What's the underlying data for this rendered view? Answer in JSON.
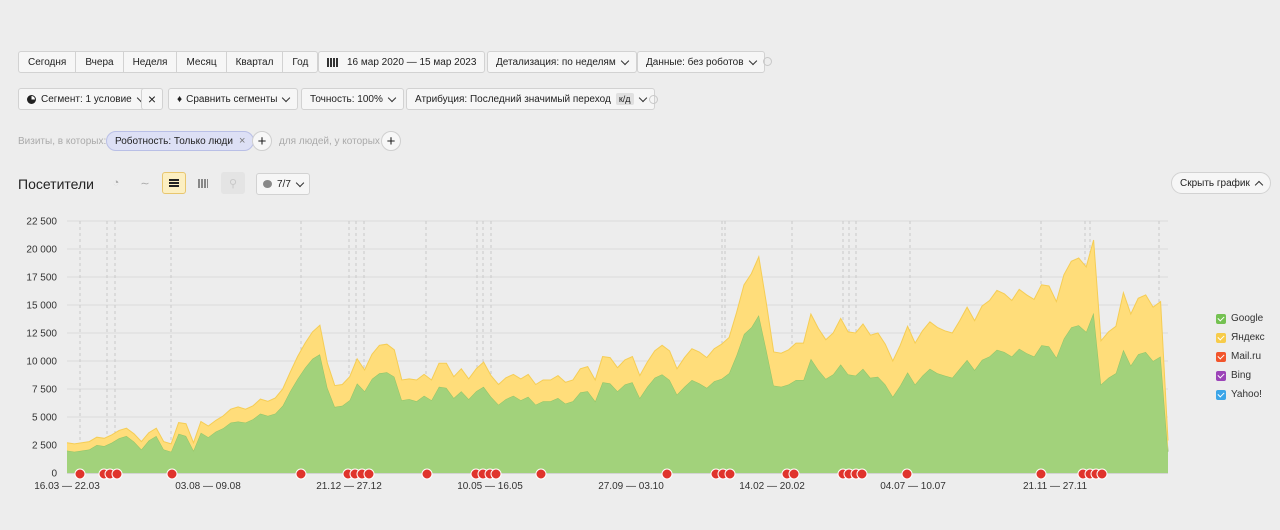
{
  "toolbar": {
    "periods": [
      "Сегодня",
      "Вчера",
      "Неделя",
      "Месяц",
      "Квартал",
      "Год"
    ],
    "date_range": "16 мар 2020 — 15 мар 2023",
    "detail": "Детализация: по неделям",
    "data_filter": "Данные: без роботов"
  },
  "toolbar2": {
    "segment": "Сегмент: 1 условие",
    "compare": "Сравнить сегменты",
    "accuracy": "Точность: 100%",
    "attribution": "Атрибуция: Последний значимый переход",
    "attribution_badge": "к/д"
  },
  "filter_row": {
    "visits_label": "Визиты, в которых:",
    "chip": "Роботность: Только люди",
    "people_label": "для людей, у которых"
  },
  "chart_header": {
    "title": "Посетители",
    "annotations_count": "7/7",
    "hide_button": "Скрыть график"
  },
  "colors": {
    "google": "#a2d27b",
    "yandex": "#ffdd7a",
    "mailru": "#f2552c",
    "bing": "#9c44b8",
    "yahoo": "#3ba5e8"
  },
  "chart_data": {
    "type": "area",
    "y_ticks": [
      "0",
      "2 500",
      "5 000",
      "7 500",
      "10 000",
      "12 500",
      "15 000",
      "17 500",
      "20 000",
      "22 500"
    ],
    "ylim": [
      0,
      22500
    ],
    "x_tick_labels": [
      "16.03 — 22.03",
      "03.08 — 09.08",
      "21.12 — 27.12",
      "10.05 — 16.05",
      "27.09 — 03.10",
      "14.02 — 20.02",
      "04.07 — 10.07",
      "21.11 — 27.11"
    ],
    "legend": [
      "Google",
      "Яндекс",
      "Mail.ru",
      "Bing",
      "Yahoo!"
    ],
    "series": [
      {
        "name": "Google",
        "values": [
          2000,
          1900,
          2000,
          2100,
          2500,
          2400,
          2700,
          3100,
          3300,
          2800,
          2100,
          2900,
          3300,
          2100,
          1900,
          3500,
          3300,
          2000,
          3600,
          3200,
          3700,
          4000,
          4500,
          4600,
          4500,
          4800,
          5300,
          5100,
          5300,
          6000,
          7300,
          8400,
          9400,
          10200,
          10600,
          7600,
          5900,
          6000,
          6500,
          8000,
          7300,
          8400,
          8900,
          9000,
          8600,
          6500,
          6600,
          6400,
          6900,
          6500,
          7700,
          7600,
          6700,
          7300,
          6600,
          7300,
          7700,
          6800,
          6100,
          6600,
          6900,
          6500,
          6800,
          6100,
          6400,
          6400,
          6700,
          6200,
          6400,
          7200,
          7300,
          6400,
          8100,
          8000,
          7300,
          7900,
          8100,
          6700,
          7700,
          8500,
          8800,
          8300,
          7000,
          7700,
          8300,
          8000,
          7600,
          8200,
          8400,
          8900,
          10500,
          12400,
          13000,
          14100,
          11000,
          7800,
          7700,
          7900,
          8300,
          8300,
          10200,
          9200,
          8400,
          8800,
          9700,
          8800,
          8700,
          9300,
          8500,
          8600,
          7900,
          6800,
          7800,
          9000,
          7900,
          8700,
          9300,
          8900,
          8700,
          8500,
          9300,
          10100,
          9200,
          10100,
          10400,
          11000,
          10800,
          10400,
          11100,
          10700,
          10400,
          11400,
          11300,
          10300,
          12000,
          13000,
          13200,
          12600,
          14300,
          7900,
          8500,
          8900,
          11000,
          9600,
          10600,
          10800,
          10000,
          10400,
          1900
        ]
      },
      {
        "name": "Яндекс",
        "values": [
          700,
          700,
          700,
          700,
          700,
          700,
          700,
          700,
          700,
          700,
          700,
          700,
          700,
          700,
          700,
          1000,
          1100,
          700,
          1000,
          1000,
          1000,
          1100,
          1200,
          1300,
          1200,
          1200,
          1300,
          1300,
          1400,
          1500,
          1700,
          2000,
          2200,
          2400,
          2600,
          2200,
          1900,
          1900,
          2100,
          2200,
          1900,
          2200,
          2500,
          2500,
          2400,
          1800,
          1800,
          1900,
          1900,
          1800,
          2100,
          2200,
          1900,
          2000,
          1800,
          2000,
          2200,
          1900,
          1800,
          1900,
          1900,
          1900,
          2000,
          1800,
          1900,
          1900,
          2000,
          1900,
          1900,
          2100,
          2200,
          1900,
          2300,
          2300,
          2100,
          2200,
          2300,
          2000,
          2200,
          2400,
          2600,
          2600,
          2300,
          2600,
          2800,
          2800,
          2700,
          2900,
          3100,
          3200,
          3800,
          4400,
          4800,
          5200,
          4200,
          3000,
          3000,
          3100,
          3300,
          3300,
          4000,
          3700,
          3500,
          3700,
          4100,
          3800,
          3800,
          4000,
          3800,
          3900,
          3600,
          3200,
          3600,
          4100,
          3700,
          4000,
          4200,
          4100,
          4000,
          4000,
          4300,
          4700,
          4400,
          4800,
          5000,
          5300,
          5200,
          5000,
          5300,
          5200,
          5100,
          5400,
          5400,
          5000,
          5700,
          5900,
          6000,
          5800,
          6500,
          3900,
          4100,
          4200,
          5100,
          4600,
          5000,
          5100,
          4800,
          4900,
          1000
        ]
      },
      {
        "name": "Mail.ru",
        "values": [
          0,
          0,
          0,
          0,
          0,
          0,
          0,
          0,
          0,
          0,
          0,
          0,
          0,
          0,
          0,
          0,
          0,
          0,
          0,
          0,
          0,
          0,
          0,
          0,
          0,
          0,
          0,
          0,
          0,
          0,
          0,
          0,
          0,
          0,
          0,
          0,
          0,
          0,
          0,
          0,
          0,
          0,
          0,
          0,
          0,
          0,
          0,
          0,
          0,
          0,
          0,
          0,
          0,
          0,
          0,
          0,
          0,
          0,
          0,
          0,
          0,
          0,
          0,
          0,
          0,
          0,
          0,
          0,
          0,
          0,
          0,
          0,
          0,
          0,
          0,
          0,
          0,
          0,
          0,
          0,
          0,
          0,
          0,
          0,
          0,
          0,
          0,
          0,
          0,
          0,
          0,
          0,
          0,
          0,
          0,
          0,
          0,
          0,
          0,
          0,
          0,
          0,
          0,
          0,
          0,
          0,
          0,
          0,
          0,
          0,
          0,
          0,
          0,
          0,
          0,
          0,
          0,
          0,
          0,
          0,
          0,
          0,
          0,
          0,
          0,
          0,
          0,
          0,
          0,
          0,
          0,
          0,
          0,
          0,
          0,
          0,
          0,
          0,
          0,
          0,
          0,
          0,
          0,
          0,
          0,
          0,
          0,
          0,
          0,
          0
        ]
      },
      {
        "name": "Bing",
        "values": [
          0,
          0,
          0,
          0,
          0,
          0,
          0,
          0,
          0,
          0,
          0,
          0,
          0,
          0,
          0,
          0,
          0,
          0,
          0,
          0,
          0,
          0,
          0,
          0,
          0,
          0,
          0,
          0,
          0,
          0,
          0,
          0,
          0,
          0,
          0,
          0,
          0,
          0,
          0,
          0,
          0,
          0,
          0,
          0,
          0,
          0,
          0,
          0,
          0,
          0,
          0,
          0,
          0,
          0,
          0,
          0,
          0,
          0,
          0,
          0,
          0,
          0,
          0,
          0,
          0,
          0,
          0,
          0,
          0,
          0,
          0,
          0,
          0,
          0,
          0,
          0,
          0,
          0,
          0,
          0,
          0,
          0,
          0,
          0,
          0,
          0,
          0,
          0,
          0,
          0,
          0,
          0,
          0,
          0,
          0,
          0,
          0,
          0,
          0,
          0,
          0,
          0,
          0,
          0,
          0,
          0,
          0,
          0,
          0,
          0,
          0,
          0,
          0,
          0,
          0,
          0,
          0,
          0,
          0,
          0,
          0,
          0,
          0,
          0,
          0,
          0,
          0,
          0,
          0,
          0,
          0,
          0,
          0,
          0,
          0,
          0,
          0,
          0,
          0,
          0,
          0,
          0,
          0,
          0,
          0,
          0,
          0,
          0,
          0,
          0
        ]
      },
      {
        "name": "Yahoo!",
        "values": [
          0,
          0,
          0,
          0,
          0,
          0,
          0,
          0,
          0,
          0,
          0,
          0,
          0,
          0,
          0,
          0,
          0,
          0,
          0,
          0,
          0,
          0,
          0,
          0,
          0,
          0,
          0,
          0,
          0,
          0,
          0,
          0,
          0,
          0,
          0,
          0,
          0,
          0,
          0,
          0,
          0,
          0,
          0,
          0,
          0,
          0,
          0,
          0,
          0,
          0,
          0,
          0,
          0,
          0,
          0,
          0,
          0,
          0,
          0,
          0,
          0,
          0,
          0,
          0,
          0,
          0,
          0,
          0,
          0,
          0,
          0,
          0,
          0,
          0,
          0,
          0,
          0,
          0,
          0,
          0,
          0,
          0,
          0,
          0,
          0,
          0,
          0,
          0,
          0,
          0,
          0,
          0,
          0,
          0,
          0,
          0,
          0,
          0,
          0,
          0,
          0,
          0,
          0,
          0,
          0,
          0,
          0,
          0,
          0,
          0,
          0,
          0,
          0,
          0,
          0,
          0,
          0,
          0,
          0,
          0,
          0,
          0,
          0,
          0,
          0,
          0,
          0,
          0,
          0,
          0,
          0,
          0,
          0,
          0,
          0,
          0,
          0,
          0,
          0,
          0,
          0,
          0,
          0,
          0,
          0,
          0,
          0,
          0,
          0,
          0
        ]
      }
    ],
    "note_marker_count": 32
  }
}
